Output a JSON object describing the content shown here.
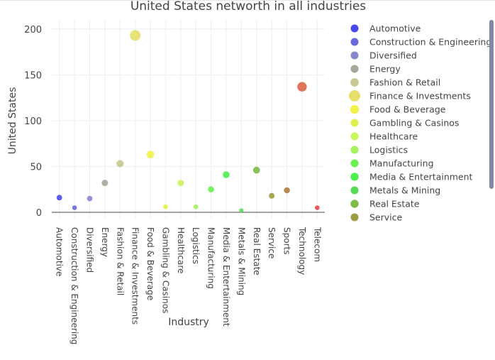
{
  "chart_data": {
    "type": "scatter",
    "title": "United States networth in all industries",
    "xlabel": "Industry",
    "ylabel": "United States",
    "ylim": [
      -7,
      210
    ],
    "yticks": [
      0,
      50,
      100,
      150,
      200
    ],
    "grid": true,
    "legend_position": "right",
    "categories": [
      "Automotive",
      "Construction & Engineering",
      "Diversified",
      "Energy",
      "Fashion & Retail",
      "Finance & Investments",
      "Food & Beverage",
      "Gambling & Casinos",
      "Healthcare",
      "Logistics",
      "Manufacturing",
      "Media & Entertainment",
      "Metals & Mining",
      "Real Estate",
      "Service",
      "Sports",
      "Technology",
      "Telecom"
    ],
    "series": [
      {
        "name": "Automotive",
        "x": "Automotive",
        "y": 16,
        "color": "#4a4af0"
      },
      {
        "name": "Construction & Engineering",
        "x": "Construction & Engineering",
        "y": 5,
        "color": "#6868dc"
      },
      {
        "name": "Diversified",
        "x": "Diversified",
        "y": 15,
        "color": "#8888cc"
      },
      {
        "name": "Energy",
        "x": "Energy",
        "y": 32,
        "color": "#a6a69a"
      },
      {
        "name": "Fashion & Retail",
        "x": "Fashion & Retail",
        "y": 53,
        "color": "#c8c890"
      },
      {
        "name": "Finance & Investments",
        "x": "Finance & Investments",
        "y": 193,
        "color": "#e6e06a"
      },
      {
        "name": "Food & Beverage",
        "x": "Food & Beverage",
        "y": 63,
        "color": "#f2f24a"
      },
      {
        "name": "Gambling & Casinos",
        "x": "Gambling & Casinos",
        "y": 6,
        "color": "#e0f050"
      },
      {
        "name": "Healthcare",
        "x": "Healthcare",
        "y": 32,
        "color": "#c8f55a"
      },
      {
        "name": "Logistics",
        "x": "Logistics",
        "y": 6,
        "color": "#a6f25a"
      },
      {
        "name": "Manufacturing",
        "x": "Manufacturing",
        "y": 25,
        "color": "#6af250"
      },
      {
        "name": "Media & Entertainment",
        "x": "Media & Entertainment",
        "y": 41,
        "color": "#4cf04c"
      },
      {
        "name": "Metals & Mining",
        "x": "Metals & Mining",
        "y": 2,
        "color": "#55dd55"
      },
      {
        "name": "Real Estate",
        "x": "Real Estate",
        "y": 46,
        "color": "#7cbc48"
      },
      {
        "name": "Service",
        "x": "Service",
        "y": 18,
        "color": "#9c9c40"
      },
      {
        "name": "Sports",
        "x": "Sports",
        "y": 24,
        "color": "#b07c3c"
      },
      {
        "name": "Technology",
        "x": "Technology",
        "y": 137,
        "color": "#dc6646"
      },
      {
        "name": "Telecom",
        "x": "Telecom",
        "y": 5,
        "color": "#ec4848"
      }
    ],
    "legend_visible": [
      "Automotive",
      "Construction & Engineering",
      "Diversified",
      "Energy",
      "Fashion & Retail",
      "Finance & Investments",
      "Food & Beverage",
      "Gambling & Casinos",
      "Healthcare",
      "Logistics",
      "Manufacturing",
      "Media & Entertainment",
      "Metals & Mining",
      "Real Estate",
      "Service"
    ]
  }
}
